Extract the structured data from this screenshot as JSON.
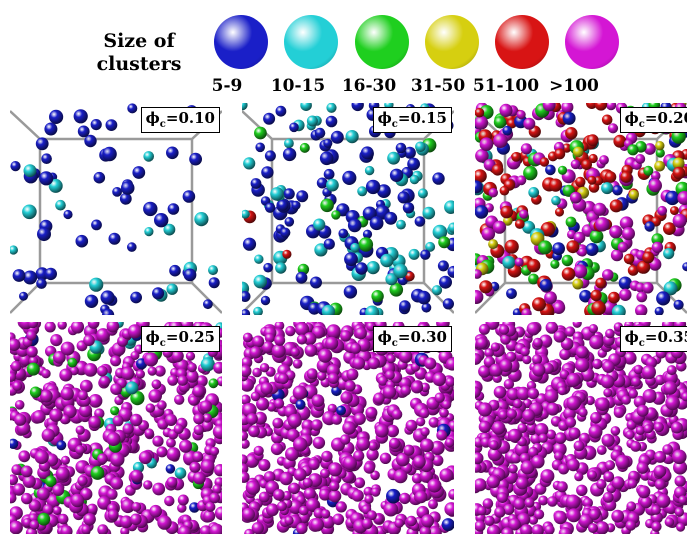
{
  "legend": {
    "title_line1": "Size of",
    "title_line2": "clusters",
    "items": [
      {
        "range": "5-9",
        "color": "#1a1fc8"
      },
      {
        "range": "10-15",
        "color": "#23cfd6"
      },
      {
        "range": "16-30",
        "color": "#1fcf1f"
      },
      {
        "range": "31-50",
        "color": "#d6cf10"
      },
      {
        "range": "51-100",
        "color": "#d81414"
      },
      {
        "range": ">100",
        "color": "#d416d4"
      }
    ]
  },
  "panels": [
    {
      "symbol": "ϕ",
      "sub": "c",
      "value": "=0.10",
      "mix": [
        1,
        0.15,
        0,
        0,
        0,
        0
      ],
      "count": 70,
      "box": true
    },
    {
      "symbol": "ϕ",
      "sub": "c",
      "value": "=0.15",
      "mix": [
        0.55,
        0.28,
        0.12,
        0,
        0.05,
        0
      ],
      "count": 190,
      "box": true
    },
    {
      "symbol": "ϕ",
      "sub": "c",
      "value": "=0.20",
      "mix": [
        0.1,
        0.06,
        0.14,
        0.06,
        0.3,
        0.34
      ],
      "count": 360,
      "box": true
    },
    {
      "symbol": "ϕ",
      "sub": "c",
      "value": "=0.25",
      "mix": [
        0.02,
        0.04,
        0.04,
        0,
        0,
        0.9
      ],
      "count": 520,
      "box": false
    },
    {
      "symbol": "ϕ",
      "sub": "c",
      "value": "=0.30",
      "mix": [
        0.02,
        0,
        0,
        0,
        0,
        0.98
      ],
      "count": 560,
      "box": false
    },
    {
      "symbol": "ϕ",
      "sub": "c",
      "value": "=0.35",
      "mix": [
        0,
        0,
        0,
        0,
        0,
        1
      ],
      "count": 620,
      "box": false
    }
  ]
}
